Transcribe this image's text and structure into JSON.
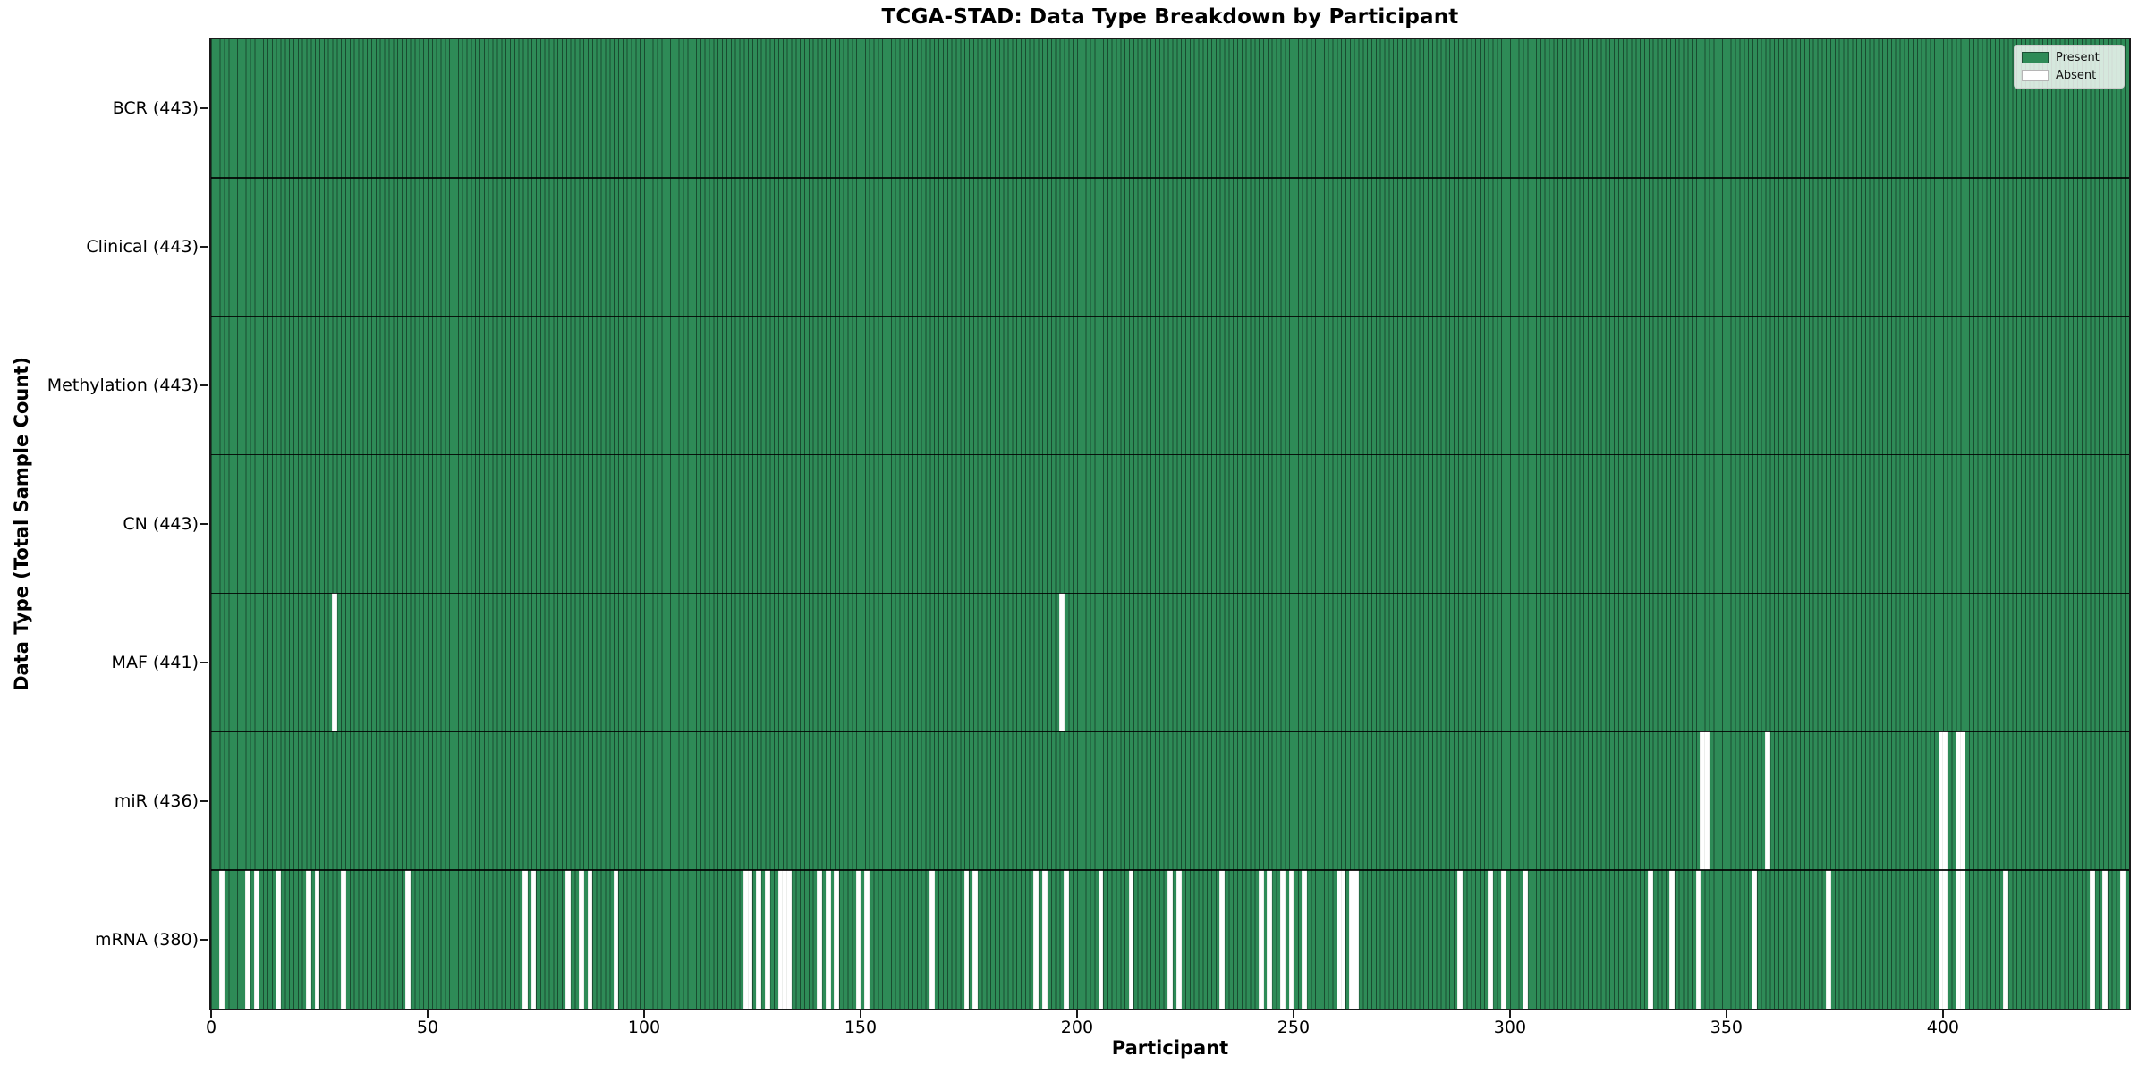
{
  "colors": {
    "present": "#2e8b57",
    "absent": "#ffffff",
    "cell_edge": "rgba(0,0,0,0.45)",
    "axis": "#1a1a1a",
    "legend_border": "#cccccc"
  },
  "chart_data": {
    "type": "heatmap",
    "title": "TCGA-STAD: Data Type Breakdown by Participant",
    "xlabel": "Participant",
    "ylabel": "Data Type (Total Sample Count)",
    "legend_labels": [
      "Present",
      "Absent"
    ],
    "legend_position": "upper right",
    "grid": false,
    "n_participants": 443,
    "xlim": [
      0,
      443
    ],
    "x_ticks": [
      0,
      50,
      100,
      150,
      200,
      250,
      300,
      350,
      400
    ],
    "cell_values": {
      "present": 1,
      "absent": 0
    },
    "rows": [
      {
        "label": "BCR (443)",
        "name": "BCR",
        "total": 443,
        "absent_participants": []
      },
      {
        "label": "Clinical (443)",
        "name": "Clinical",
        "total": 443,
        "absent_participants": []
      },
      {
        "label": "Methylation (443)",
        "name": "Methylation",
        "total": 443,
        "absent_participants": []
      },
      {
        "label": "CN (443)",
        "name": "CN",
        "total": 443,
        "absent_participants": []
      },
      {
        "label": "MAF (441)",
        "name": "MAF",
        "total": 441,
        "absent_participants": [
          28,
          196
        ]
      },
      {
        "label": "miR (436)",
        "name": "miR",
        "total": 436,
        "absent_participants": [
          344,
          345,
          359,
          399,
          400,
          403,
          404
        ]
      },
      {
        "label": "mRNA (380)",
        "name": "mRNA",
        "total": 380,
        "absent_participants": [
          2,
          8,
          10,
          15,
          22,
          24,
          30,
          45,
          72,
          74,
          82,
          85,
          87,
          93,
          123,
          124,
          126,
          128,
          131,
          132,
          133,
          140,
          142,
          144,
          149,
          151,
          166,
          174,
          176,
          190,
          192,
          197,
          205,
          212,
          221,
          223,
          233,
          242,
          244,
          247,
          249,
          252,
          260,
          261,
          263,
          264,
          288,
          295,
          298,
          303,
          332,
          337,
          343,
          356,
          373,
          399,
          400,
          403,
          404,
          414,
          434,
          437,
          441
        ]
      }
    ]
  }
}
